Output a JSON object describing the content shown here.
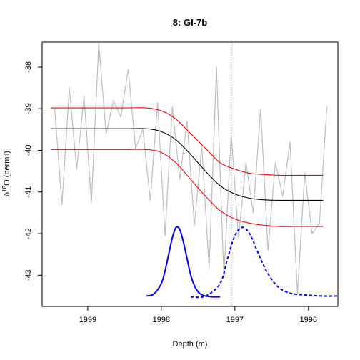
{
  "chart_data": {
    "type": "line",
    "title": "8: GI-7b",
    "xlabel": "Depth (m)",
    "ylabel": "δ18O (permil)",
    "ylabel_parts": {
      "delta": "δ",
      "sup": "18",
      "rest": "O (permil)"
    },
    "xlim": [
      1999.62,
      1995.6
    ],
    "ylim": [
      -43.75,
      -37.4
    ],
    "x_reversed": true,
    "x_ticks": [
      1999,
      1998,
      1997,
      1996
    ],
    "y_ticks": [
      -38,
      -39,
      -40,
      -41,
      -42,
      -43
    ],
    "vline": {
      "x": 1997.05,
      "style": "dotted",
      "color": "#555555"
    },
    "colors": {
      "raw": "#bebebe",
      "fit": "#000000",
      "bounds": "#ff0000",
      "density": "#0000ff"
    },
    "series": [
      {
        "role": "raw",
        "x": [
          1999.45,
          1999.35,
          1999.25,
          1999.15,
          1999.05,
          1998.95,
          1998.85,
          1998.75,
          1998.65,
          1998.55,
          1998.45,
          1998.35,
          1998.25,
          1998.15,
          1998.05,
          1997.95,
          1997.85,
          1997.75,
          1997.65,
          1997.55,
          1997.45,
          1997.35,
          1997.25,
          1997.15,
          1997.05,
          1996.95,
          1996.85,
          1996.75,
          1996.65,
          1996.55,
          1996.45,
          1996.35,
          1996.25,
          1996.15,
          1996.05,
          1995.95,
          1995.85,
          1995.75
        ],
        "y": [
          -38.98,
          -41.3,
          -38.5,
          -40.45,
          -38.7,
          -41.25,
          -37.43,
          -39.6,
          -38.8,
          -39.2,
          -38.05,
          -39.95,
          -39.5,
          -41.2,
          -38.85,
          -42.05,
          -38.95,
          -40.7,
          -39.3,
          -41.8,
          -39.9,
          -42.85,
          -38.0,
          -43.05,
          -39.6,
          -42.1,
          -40.3,
          -41.5,
          -39.0,
          -42.4,
          -40.3,
          -41.1,
          -39.8,
          -43.45,
          -40.55,
          -42.0,
          -41.75,
          -38.95
        ]
      },
      {
        "role": "fit",
        "x": [
          1999.5,
          1999.0,
          1998.5,
          1998.2,
          1998.0,
          1997.8,
          1997.6,
          1997.4,
          1997.2,
          1997.0,
          1996.8,
          1996.6,
          1996.4,
          1996.2,
          1995.8
        ],
        "y": [
          -39.48,
          -39.48,
          -39.48,
          -39.48,
          -39.55,
          -39.75,
          -40.1,
          -40.5,
          -40.85,
          -41.05,
          -41.15,
          -41.19,
          -41.2,
          -41.2,
          -41.2
        ]
      },
      {
        "role": "upper",
        "x": [
          1999.5,
          1999.0,
          1998.5,
          1998.2,
          1998.0,
          1997.8,
          1997.6,
          1997.4,
          1997.2,
          1997.0,
          1996.8,
          1996.6,
          1996.4,
          1996.2,
          1995.8
        ],
        "y": [
          -38.98,
          -38.98,
          -38.98,
          -38.98,
          -39.05,
          -39.25,
          -39.6,
          -39.95,
          -40.3,
          -40.45,
          -40.55,
          -40.58,
          -40.6,
          -40.6,
          -40.6
        ]
      },
      {
        "role": "lower",
        "x": [
          1999.5,
          1999.0,
          1998.5,
          1998.2,
          1998.0,
          1997.8,
          1997.6,
          1997.4,
          1997.2,
          1997.0,
          1996.8,
          1996.6,
          1996.4,
          1996.2,
          1995.8
        ],
        "y": [
          -39.98,
          -39.98,
          -39.98,
          -39.98,
          -40.05,
          -40.3,
          -40.7,
          -41.1,
          -41.45,
          -41.65,
          -41.75,
          -41.8,
          -41.83,
          -41.83,
          -41.83
        ]
      },
      {
        "role": "density_solid",
        "x": [
          1998.2,
          1998.1,
          1998.0,
          1997.95,
          1997.9,
          1997.85,
          1997.8,
          1997.75,
          1997.7,
          1997.65,
          1997.6,
          1997.55,
          1997.5,
          1997.45,
          1997.4,
          1997.3,
          1997.2
        ],
        "y": [
          -43.5,
          -43.45,
          -43.2,
          -42.9,
          -42.5,
          -42.1,
          -41.85,
          -41.9,
          -42.2,
          -42.6,
          -43.0,
          -43.25,
          -43.4,
          -43.47,
          -43.5,
          -43.52,
          -43.52
        ]
      },
      {
        "role": "density_dashed",
        "x": [
          1997.6,
          1997.4,
          1997.2,
          1997.1,
          1997.0,
          1996.9,
          1996.8,
          1996.7,
          1996.6,
          1996.5,
          1996.4,
          1996.3,
          1996.2,
          1996.0,
          1995.8,
          1995.6
        ],
        "y": [
          -43.52,
          -43.5,
          -43.2,
          -42.6,
          -42.05,
          -41.85,
          -42.0,
          -42.4,
          -42.8,
          -43.1,
          -43.3,
          -43.4,
          -43.45,
          -43.48,
          -43.5,
          -43.5
        ]
      }
    ]
  }
}
